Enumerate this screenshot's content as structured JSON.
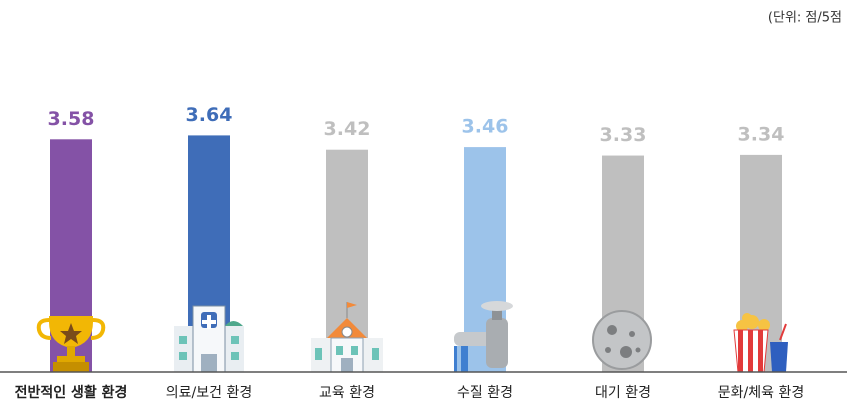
{
  "chart_data": {
    "type": "bar",
    "unit_label": "(단위: 점/5점",
    "categories": [
      "전반적인 생활 환경",
      "의료/보건 환경",
      "교육 환경",
      "수질 환경",
      "대기 환경",
      "문화/체육 환경"
    ],
    "values": [
      3.58,
      3.64,
      3.42,
      3.46,
      3.33,
      3.34
    ],
    "colors": [
      "#8452a6",
      "#3f6db8",
      "#bfbfbf",
      "#9cc3ea",
      "#bfbfbf",
      "#bfbfbf"
    ],
    "ylim": [
      0,
      5
    ],
    "highlight": 0
  }
}
